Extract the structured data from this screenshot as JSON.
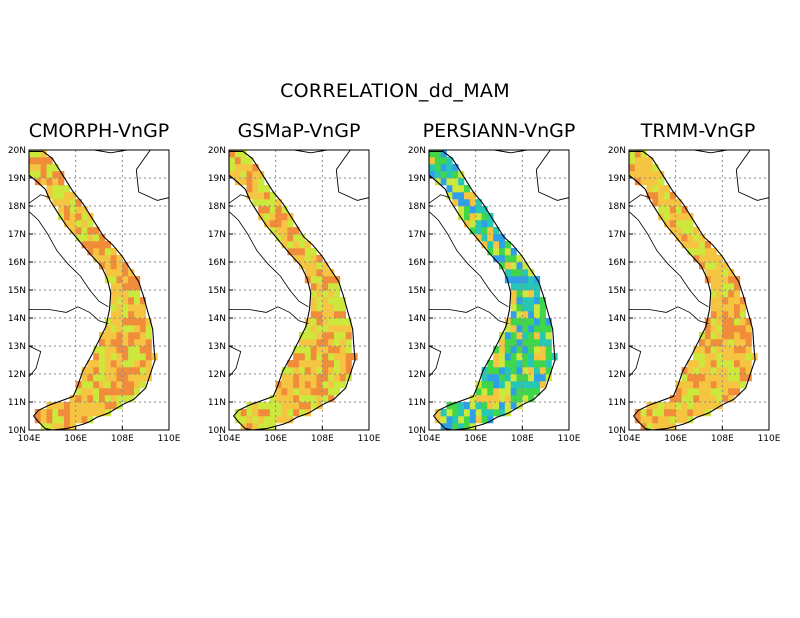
{
  "title": "CORRELATION_dd_MAM",
  "panels": [
    {
      "title": "CMORPH-VnGP",
      "scheme": "cmorph"
    },
    {
      "title": "GSMaP-VnGP",
      "scheme": "gsmap"
    },
    {
      "title": "PERSIANN-VnGP",
      "scheme": "persiann"
    },
    {
      "title": "TRMM-VnGP",
      "scheme": "trmm"
    }
  ],
  "axes": {
    "lon_ticks": [
      "104E",
      "106E",
      "108E",
      "110E"
    ],
    "lat_ticks": [
      "10N",
      "11N",
      "12N",
      "13N",
      "14N",
      "15N",
      "16N",
      "17N",
      "18N",
      "19N",
      "20N"
    ],
    "lon_range": [
      104,
      110
    ],
    "lat_range": [
      10,
      20
    ],
    "grid": "dotted"
  },
  "colors": {
    "red": "#e8452c",
    "orange": "#f08c3a",
    "yellow_orange": "#f5c542",
    "yellow_green": "#cde83c",
    "green": "#3fd64a",
    "cyan": "#27c7b6",
    "sky": "#2fa0e8",
    "blue": "#2854d8"
  }
}
